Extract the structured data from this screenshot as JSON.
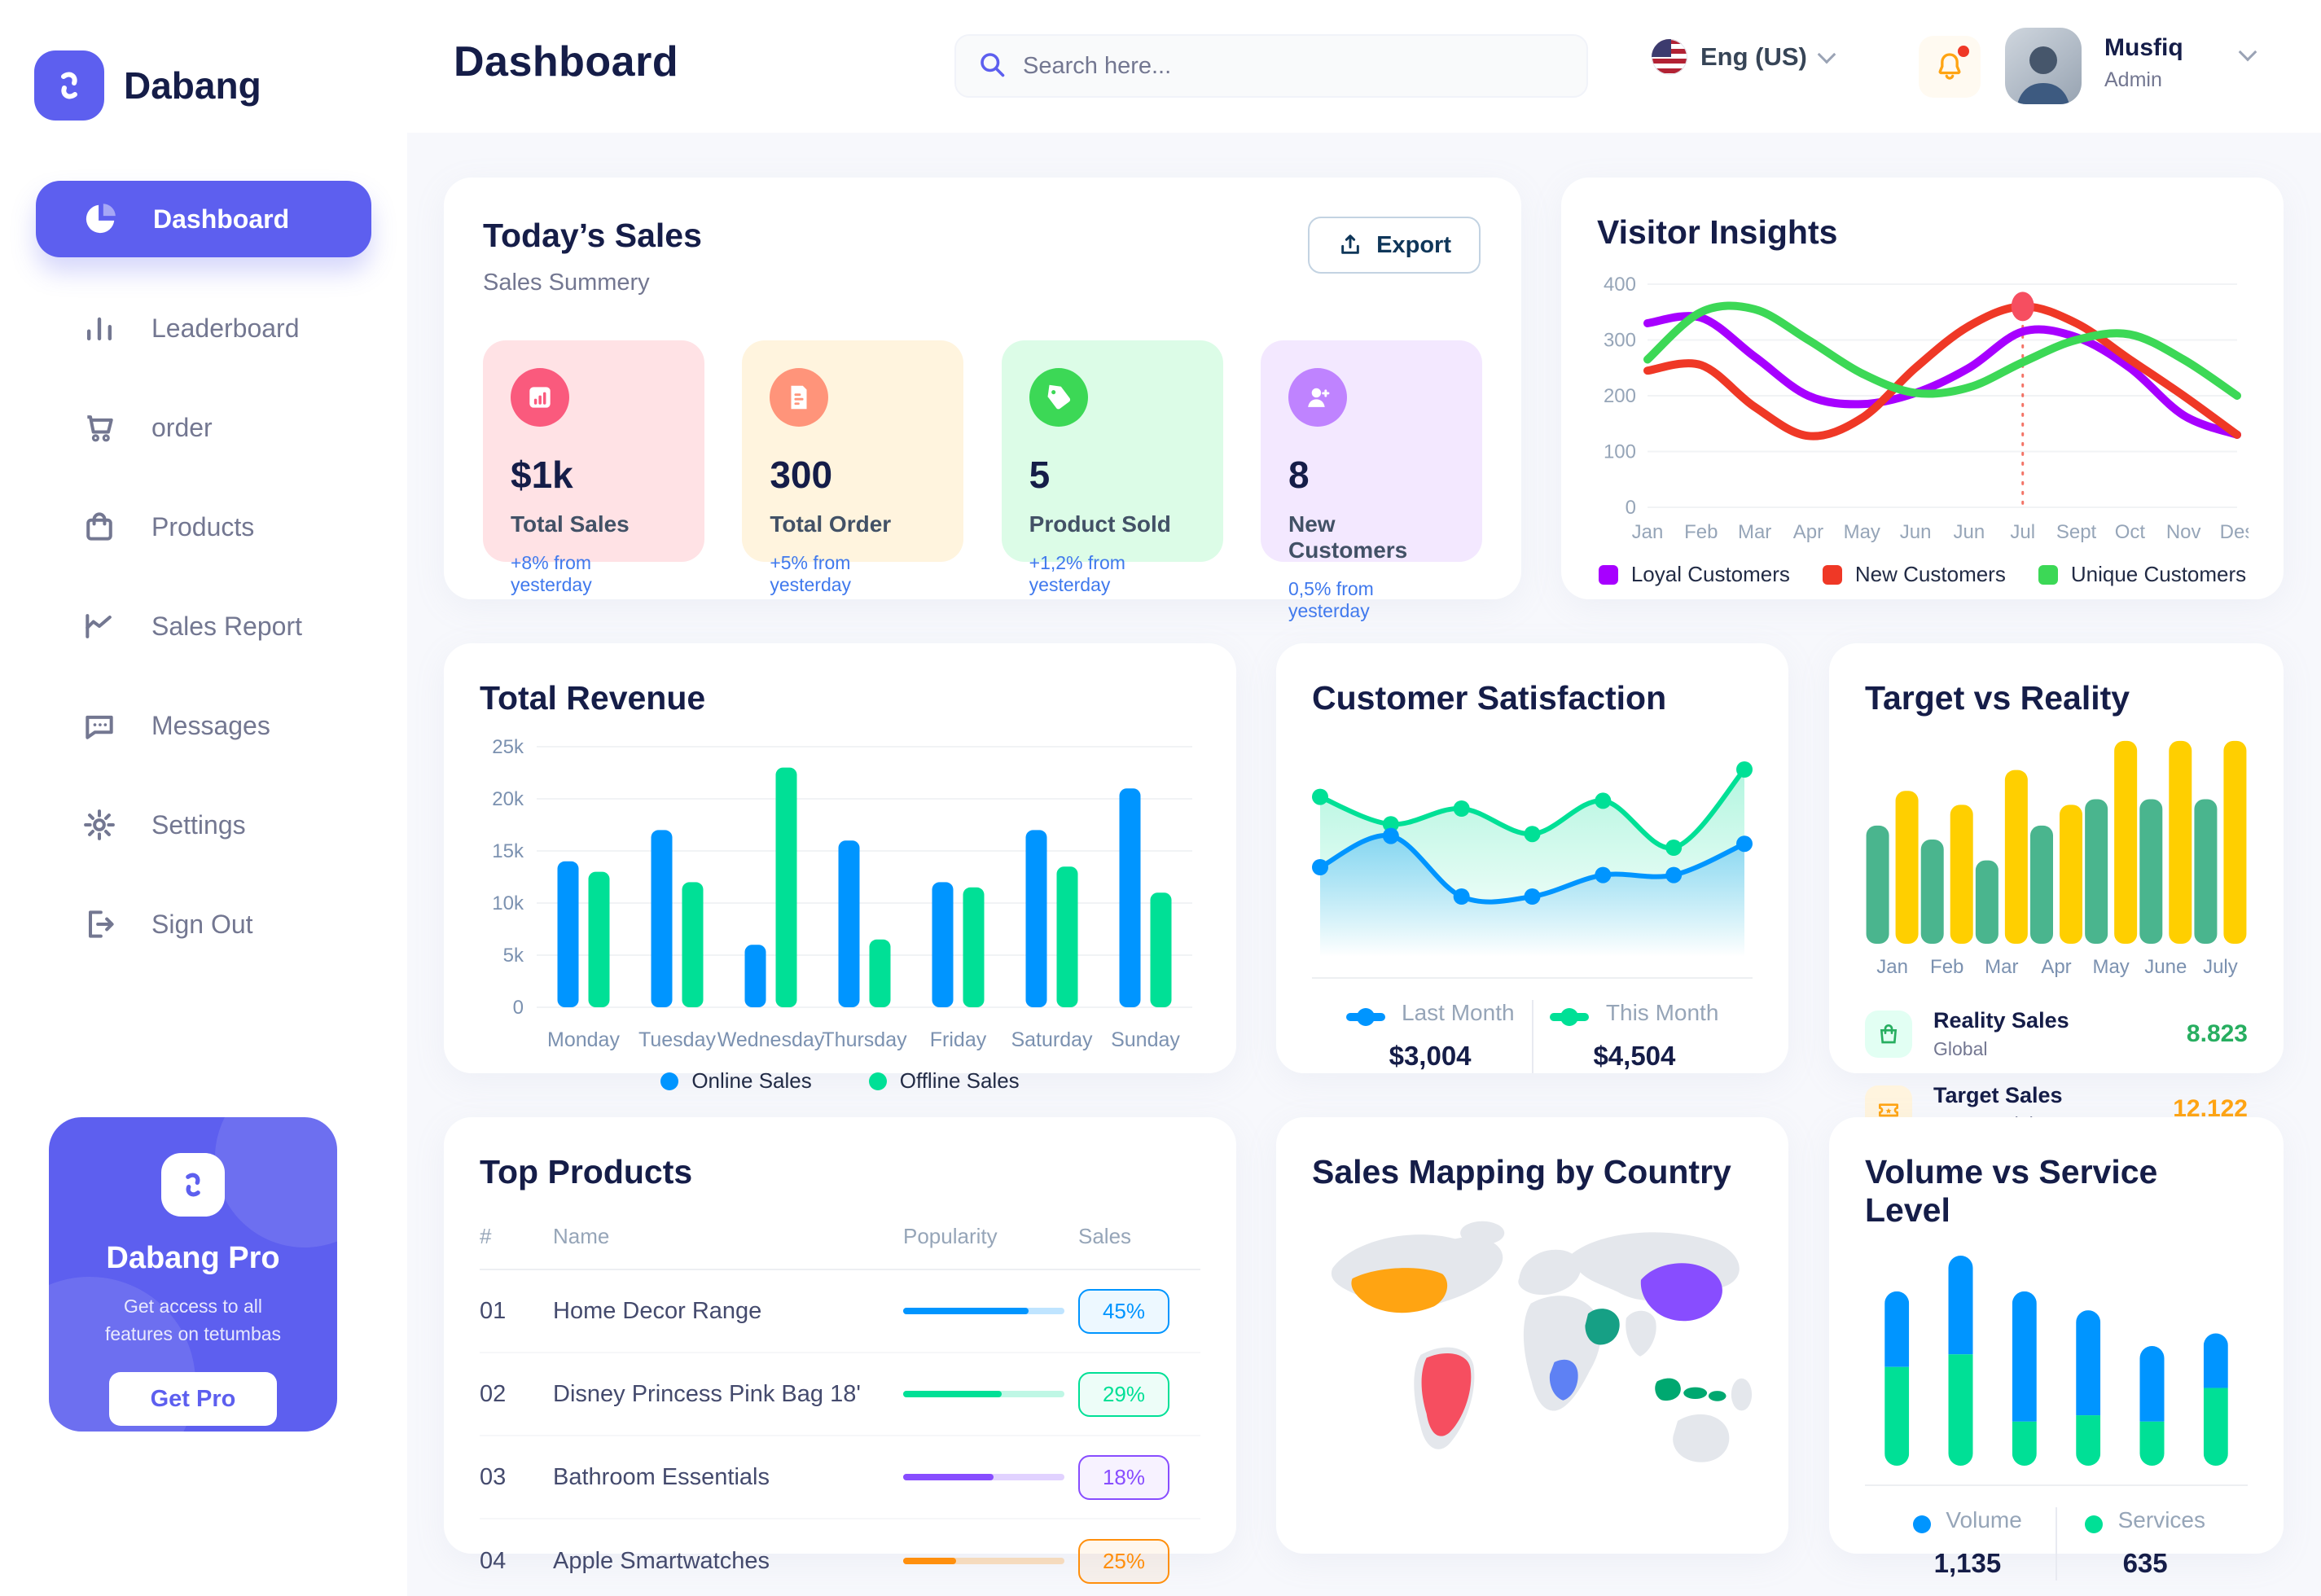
{
  "header": {
    "title": "Dashboard",
    "search_placeholder": "Search here...",
    "language": "Eng (US)",
    "user": {
      "name": "Musfiq",
      "role": "Admin"
    }
  },
  "sidebar": {
    "brand": "Dabang",
    "items": [
      {
        "label": "Dashboard",
        "active": true
      },
      {
        "label": "Leaderboard",
        "active": false
      },
      {
        "label": "order",
        "active": false
      },
      {
        "label": "Products",
        "active": false
      },
      {
        "label": "Sales Report",
        "active": false
      },
      {
        "label": "Messages",
        "active": false
      },
      {
        "label": "Settings",
        "active": false
      },
      {
        "label": "Sign Out",
        "active": false
      }
    ],
    "pro": {
      "title": "Dabang Pro",
      "desc": "Get access to all features on tetumbas",
      "button": "Get Pro",
      "accent": "#5D5FEF"
    }
  },
  "todays_sales": {
    "title": "Today’s Sales",
    "subtitle": "Sales Summery",
    "export_label": "Export",
    "cards": [
      {
        "value": "$1k",
        "label": "Total Sales",
        "delta": "+8% from yesterday",
        "bg": "#FFE2E5",
        "icon_bg": "#FA5A7D",
        "icon": "bar-chart"
      },
      {
        "value": "300",
        "label": "Total Order",
        "delta": "+5% from yesterday",
        "bg": "#FFF4DE",
        "icon_bg": "#FF947A",
        "icon": "order-file"
      },
      {
        "value": "5",
        "label": "Product Sold",
        "delta": "+1,2% from yesterday",
        "bg": "#DCFCE7",
        "icon_bg": "#3CD856",
        "icon": "tag"
      },
      {
        "value": "8",
        "label": "New Customers",
        "delta": "0,5% from yesterday",
        "bg": "#F3E8FF",
        "icon_bg": "#BF83FF",
        "icon": "person-plus"
      }
    ],
    "delta_color": "#4079ED"
  },
  "visitor_insights": {
    "title": "Visitor Insights",
    "chart_data": {
      "type": "line",
      "categories": [
        "Jan",
        "Feb",
        "Mar",
        "Apr",
        "May",
        "Jun",
        "Jun",
        "Jul",
        "Sept",
        "Oct",
        "Nov",
        "Des"
      ],
      "yticks": [
        0,
        100,
        200,
        300,
        400
      ],
      "ylim": [
        0,
        400
      ],
      "series": [
        {
          "name": "Loyal Customers",
          "color": "#A700FF",
          "values": [
            330,
            340,
            270,
            200,
            185,
            205,
            250,
            315,
            305,
            250,
            165,
            130
          ]
        },
        {
          "name": "New Customers",
          "color": "#EF3826",
          "values": [
            245,
            255,
            180,
            128,
            160,
            250,
            325,
            360,
            330,
            265,
            200,
            130
          ]
        },
        {
          "name": "Unique Customers",
          "color": "#3CD856",
          "values": [
            265,
            350,
            355,
            300,
            240,
            205,
            215,
            260,
            300,
            310,
            265,
            200
          ]
        }
      ],
      "marker": {
        "series": "New Customers",
        "index": 7,
        "value": 360
      },
      "legend_position": "bottom"
    }
  },
  "total_revenue": {
    "title": "Total Revenue",
    "chart_data": {
      "type": "bar",
      "categories": [
        "Monday",
        "Tuesday",
        "Wednesday",
        "Thursday",
        "Friday",
        "Saturday",
        "Sunday"
      ],
      "yticks_labels": [
        "0",
        "5k",
        "10k",
        "15k",
        "20k",
        "25k"
      ],
      "ylim": [
        0,
        25
      ],
      "series": [
        {
          "name": "Online Sales",
          "color": "#0095FF",
          "values": [
            14,
            17,
            6,
            16,
            12,
            17,
            21
          ]
        },
        {
          "name": "Offline Sales",
          "color": "#00E096",
          "values": [
            13,
            12,
            23,
            6.5,
            11.5,
            13.5,
            11
          ]
        }
      ],
      "legend_position": "bottom"
    }
  },
  "customer_satisfaction": {
    "title": "Customer Satisfaction",
    "chart_data": {
      "type": "area",
      "series": [
        {
          "name": "Last Month",
          "color": "#0095FF",
          "total": "$3,004",
          "values": [
            40,
            56,
            25,
            25,
            36,
            36,
            52
          ]
        },
        {
          "name": "This Month",
          "color": "#00E096",
          "total": "$4,504",
          "values": [
            76,
            62,
            70,
            57,
            74,
            50,
            90
          ]
        }
      ],
      "ylim": [
        0,
        100
      ],
      "legend_position": "bottom"
    }
  },
  "target_vs_reality": {
    "title": "Target vs Reality",
    "chart_data": {
      "type": "bar",
      "categories": [
        "Jan",
        "Feb",
        "Mar",
        "Apr",
        "May",
        "June",
        "July"
      ],
      "ylim": [
        0,
        15
      ],
      "series": [
        {
          "name": "Reality Sales",
          "color": "#4AB58E",
          "values": [
            8.5,
            7.5,
            6,
            8.5,
            10.4,
            10.4,
            10.4
          ]
        },
        {
          "name": "Target Sales",
          "color": "#FFCF00",
          "values": [
            11,
            10,
            12.5,
            10,
            14.6,
            14.6,
            14.6
          ]
        }
      ]
    },
    "legend": [
      {
        "title": "Reality Sales",
        "sub": "Global",
        "value": "8.823",
        "value_color": "#27AE60",
        "icon_bg": "#E2FFF3",
        "icon": "bag"
      },
      {
        "title": "Target Sales",
        "sub": "Commercial",
        "value": "12.122",
        "value_color": "#FFA412",
        "icon_bg": "#FFF4DE",
        "icon": "ticket"
      }
    ]
  },
  "top_products": {
    "title": "Top Products",
    "columns": [
      "#",
      "Name",
      "Popularity",
      "Sales"
    ],
    "rows": [
      {
        "num": "01",
        "name": "Home Decor Range",
        "popularity": 78,
        "sales": "45%",
        "color": "#0095FF"
      },
      {
        "num": "02",
        "name": "Disney Princess Pink Bag 18'",
        "popularity": 61,
        "sales": "29%",
        "color": "#00E096"
      },
      {
        "num": "03",
        "name": "Bathroom Essentials",
        "popularity": 56,
        "sales": "18%",
        "color": "#884DFF"
      },
      {
        "num": "04",
        "name": "Apple Smartwatches",
        "popularity": 33,
        "sales": "25%",
        "color": "#FF8F0D"
      }
    ]
  },
  "sales_map": {
    "title": "Sales Mapping by Country",
    "land_color": "#E4E7EC",
    "countries": {
      "usa": "#FFA412",
      "brazil": "#F64E60",
      "congo": "#5E81F4",
      "saudi": "#16A085",
      "china": "#884DFF",
      "indonesia": "#00A870"
    }
  },
  "volume_service": {
    "title": "Volume vs Service Level",
    "chart_data": {
      "type": "bar",
      "stacked": true,
      "series": [
        {
          "name": "Volume",
          "color": "#0095FF",
          "total": "1,135",
          "values": [
            36,
            47,
            62,
            50,
            36,
            26
          ]
        },
        {
          "name": "Services",
          "color": "#00E096",
          "total": "635",
          "values": [
            47,
            53,
            21,
            24,
            21,
            37
          ]
        }
      ]
    }
  }
}
